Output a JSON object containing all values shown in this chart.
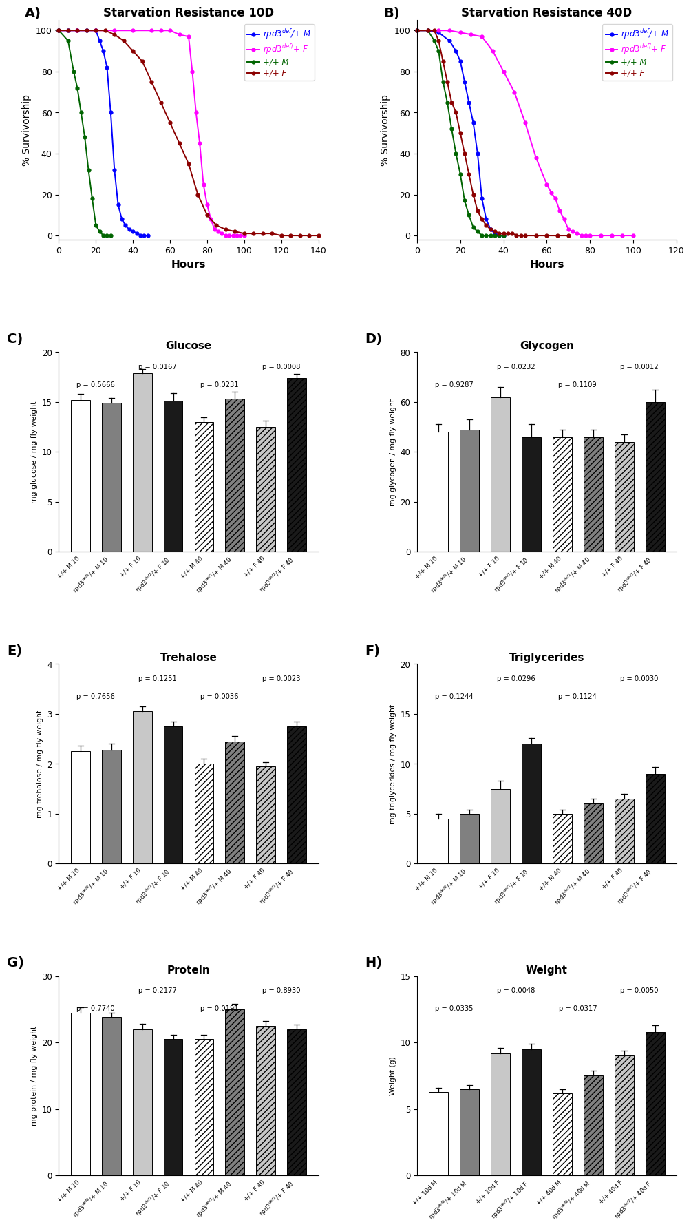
{
  "panel_A": {
    "title": "Starvation Resistance 10D",
    "xlabel": "Hours",
    "ylabel": "% Survivorship",
    "xlim": [
      0,
      140
    ],
    "ylim": [
      -2,
      105
    ],
    "xticks": [
      0,
      20,
      40,
      60,
      80,
      100,
      120,
      140
    ],
    "yticks": [
      0,
      20,
      40,
      60,
      80,
      100
    ],
    "series": {
      "rpd3M": {
        "x": [
          0,
          5,
          10,
          15,
          20,
          22,
          24,
          26,
          28,
          30,
          32,
          34,
          36,
          38,
          40,
          42,
          44,
          46,
          48
        ],
        "y": [
          100,
          100,
          100,
          100,
          100,
          95,
          90,
          82,
          60,
          32,
          15,
          8,
          5,
          3,
          2,
          1,
          0,
          0,
          0
        ],
        "color": "#0000FF",
        "label": "rpd3$^{def}$/+ M"
      },
      "rpd3F": {
        "x": [
          0,
          10,
          20,
          30,
          40,
          50,
          55,
          60,
          65,
          70,
          72,
          74,
          76,
          78,
          80,
          82,
          84,
          86,
          88,
          90,
          92,
          94,
          96,
          98,
          100
        ],
        "y": [
          100,
          100,
          100,
          100,
          100,
          100,
          100,
          100,
          98,
          97,
          80,
          60,
          45,
          25,
          15,
          8,
          3,
          2,
          1,
          0,
          0,
          0,
          0,
          0,
          0
        ],
        "color": "#FF00FF",
        "label": "rpd3$^{def/}$+ F"
      },
      "ctrlM": {
        "x": [
          0,
          5,
          8,
          10,
          12,
          14,
          16,
          18,
          20,
          22,
          24,
          26,
          28
        ],
        "y": [
          100,
          95,
          80,
          72,
          60,
          48,
          32,
          18,
          5,
          2,
          0,
          0,
          0
        ],
        "color": "#006400",
        "label": "+/+ M"
      },
      "ctrlF": {
        "x": [
          0,
          5,
          10,
          15,
          20,
          25,
          30,
          35,
          40,
          45,
          50,
          55,
          60,
          65,
          70,
          75,
          80,
          85,
          90,
          95,
          100,
          105,
          110,
          115,
          120,
          125,
          130,
          135,
          140
        ],
        "y": [
          100,
          100,
          100,
          100,
          100,
          100,
          98,
          95,
          90,
          85,
          75,
          65,
          55,
          45,
          35,
          20,
          10,
          5,
          3,
          2,
          1,
          1,
          1,
          1,
          0,
          0,
          0,
          0,
          0
        ],
        "color": "#8B0000",
        "label": "+/+ F"
      }
    }
  },
  "panel_B": {
    "title": "Starvation Resistance 40D",
    "xlabel": "Hours",
    "ylabel": "% Survivorship",
    "xlim": [
      0,
      120
    ],
    "ylim": [
      -2,
      105
    ],
    "xticks": [
      0,
      20,
      40,
      60,
      80,
      100,
      120
    ],
    "yticks": [
      0,
      20,
      40,
      60,
      80,
      100
    ],
    "series": {
      "rpd3M": {
        "x": [
          0,
          5,
          10,
          15,
          18,
          20,
          22,
          24,
          26,
          28,
          30,
          32,
          34,
          36,
          38,
          40
        ],
        "y": [
          100,
          100,
          99,
          95,
          90,
          85,
          75,
          65,
          55,
          40,
          18,
          8,
          3,
          1,
          0,
          0
        ],
        "color": "#0000FF",
        "label": "rpd3$^{def}$/+ M"
      },
      "rpd3F": {
        "x": [
          0,
          5,
          10,
          15,
          20,
          25,
          30,
          35,
          40,
          45,
          50,
          55,
          60,
          62,
          64,
          66,
          68,
          70,
          72,
          74,
          76,
          78,
          80,
          85,
          90,
          95,
          100
        ],
        "y": [
          100,
          100,
          100,
          100,
          99,
          98,
          97,
          90,
          80,
          70,
          55,
          38,
          25,
          21,
          18,
          12,
          8,
          3,
          2,
          1,
          0,
          0,
          0,
          0,
          0,
          0,
          0
        ],
        "color": "#FF00FF",
        "label": "rpd3$^{def/}$+ F"
      },
      "ctrlM": {
        "x": [
          0,
          5,
          8,
          10,
          12,
          14,
          16,
          18,
          20,
          22,
          24,
          26,
          28,
          30,
          32,
          34,
          36,
          38,
          40
        ],
        "y": [
          100,
          100,
          95,
          90,
          75,
          65,
          52,
          40,
          30,
          17,
          10,
          4,
          2,
          0,
          0,
          0,
          0,
          0,
          0
        ],
        "color": "#006400",
        "label": "+/+ M"
      },
      "ctrlF": {
        "x": [
          0,
          5,
          8,
          10,
          12,
          14,
          16,
          18,
          20,
          22,
          24,
          26,
          28,
          30,
          32,
          34,
          36,
          38,
          40,
          42,
          44,
          46,
          48,
          50,
          55,
          60,
          65,
          70
        ],
        "y": [
          100,
          100,
          100,
          95,
          85,
          75,
          65,
          60,
          50,
          40,
          30,
          20,
          12,
          8,
          5,
          3,
          2,
          1,
          1,
          1,
          1,
          0,
          0,
          0,
          0,
          0,
          0,
          0
        ],
        "color": "#8B0000",
        "label": "+/+ F"
      }
    }
  },
  "panel_C": {
    "title": "Glucose",
    "ylabel": "mg glucose / mg fly weight",
    "ylim": [
      0,
      20
    ],
    "yticks": [
      0,
      5,
      10,
      15,
      20
    ],
    "groups": [
      {
        "value": 15.2,
        "sd": 0.6,
        "hatch": "",
        "facecolor": "#FFFFFF"
      },
      {
        "value": 14.9,
        "sd": 0.5,
        "hatch": "",
        "facecolor": "#808080"
      },
      {
        "value": 17.9,
        "sd": 0.4,
        "hatch": "",
        "facecolor": "#C8C8C8"
      },
      {
        "value": 15.1,
        "sd": 0.8,
        "hatch": "",
        "facecolor": "#1A1A1A"
      },
      {
        "value": 13.0,
        "sd": 0.5,
        "hatch": "////",
        "facecolor": "#FFFFFF"
      },
      {
        "value": 15.3,
        "sd": 0.7,
        "hatch": "////",
        "facecolor": "#808080"
      },
      {
        "value": 12.5,
        "sd": 0.6,
        "hatch": "////",
        "facecolor": "#C8C8C8"
      },
      {
        "value": 17.4,
        "sd": 0.4,
        "hatch": "////",
        "facecolor": "#1A1A1A"
      }
    ],
    "pval_M10": "p = 0.5666",
    "pval_F10": "p = 0.0167",
    "pval_M40": "p = 0.0231",
    "pval_F40": "p = 0.0008"
  },
  "panel_D": {
    "title": "Glycogen",
    "ylabel": "mg glycogen / mg fly weight",
    "ylim": [
      0,
      80
    ],
    "yticks": [
      0,
      20,
      40,
      60,
      80
    ],
    "groups": [
      {
        "value": 48,
        "sd": 3,
        "hatch": "",
        "facecolor": "#FFFFFF"
      },
      {
        "value": 49,
        "sd": 4,
        "hatch": "",
        "facecolor": "#808080"
      },
      {
        "value": 62,
        "sd": 4,
        "hatch": "",
        "facecolor": "#C8C8C8"
      },
      {
        "value": 46,
        "sd": 5,
        "hatch": "",
        "facecolor": "#1A1A1A"
      },
      {
        "value": 46,
        "sd": 3,
        "hatch": "////",
        "facecolor": "#FFFFFF"
      },
      {
        "value": 46,
        "sd": 3,
        "hatch": "////",
        "facecolor": "#808080"
      },
      {
        "value": 44,
        "sd": 3,
        "hatch": "////",
        "facecolor": "#C8C8C8"
      },
      {
        "value": 60,
        "sd": 5,
        "hatch": "////",
        "facecolor": "#1A1A1A"
      }
    ],
    "pval_M10": "p = 0.9287",
    "pval_F10": "p = 0.0232",
    "pval_M40": "p = 0.1109",
    "pval_F40": "p = 0.0012"
  },
  "panel_E": {
    "title": "Trehalose",
    "ylabel": "mg trehalose / mg fly weight",
    "ylim": [
      0,
      4
    ],
    "yticks": [
      0,
      1,
      2,
      3,
      4
    ],
    "groups": [
      {
        "value": 2.25,
        "sd": 0.12,
        "hatch": "",
        "facecolor": "#FFFFFF"
      },
      {
        "value": 2.28,
        "sd": 0.12,
        "hatch": "",
        "facecolor": "#808080"
      },
      {
        "value": 3.05,
        "sd": 0.1,
        "hatch": "",
        "facecolor": "#C8C8C8"
      },
      {
        "value": 2.75,
        "sd": 0.1,
        "hatch": "",
        "facecolor": "#1A1A1A"
      },
      {
        "value": 2.0,
        "sd": 0.1,
        "hatch": "////",
        "facecolor": "#FFFFFF"
      },
      {
        "value": 2.45,
        "sd": 0.1,
        "hatch": "////",
        "facecolor": "#808080"
      },
      {
        "value": 1.95,
        "sd": 0.08,
        "hatch": "////",
        "facecolor": "#C8C8C8"
      },
      {
        "value": 2.75,
        "sd": 0.1,
        "hatch": "////",
        "facecolor": "#1A1A1A"
      }
    ],
    "pval_M10": "p = 0.7656",
    "pval_F10": "p = 0.1251",
    "pval_M40": "p = 0.0036",
    "pval_F40": "p = 0.0023"
  },
  "panel_F": {
    "title": "Triglycerides",
    "ylabel": "mg triglycerides / mg fly weight",
    "ylim": [
      0,
      20
    ],
    "yticks": [
      0,
      5,
      10,
      15,
      20
    ],
    "groups": [
      {
        "value": 4.5,
        "sd": 0.5,
        "hatch": "",
        "facecolor": "#FFFFFF"
      },
      {
        "value": 5.0,
        "sd": 0.4,
        "hatch": "",
        "facecolor": "#808080"
      },
      {
        "value": 7.5,
        "sd": 0.8,
        "hatch": "",
        "facecolor": "#C8C8C8"
      },
      {
        "value": 12.0,
        "sd": 0.6,
        "hatch": "",
        "facecolor": "#1A1A1A"
      },
      {
        "value": 5.0,
        "sd": 0.4,
        "hatch": "////",
        "facecolor": "#FFFFFF"
      },
      {
        "value": 6.0,
        "sd": 0.5,
        "hatch": "////",
        "facecolor": "#808080"
      },
      {
        "value": 6.5,
        "sd": 0.5,
        "hatch": "////",
        "facecolor": "#C8C8C8"
      },
      {
        "value": 9.0,
        "sd": 0.7,
        "hatch": "////",
        "facecolor": "#1A1A1A"
      }
    ],
    "pval_M10": "p = 0.1244",
    "pval_F10": "p = 0.0296",
    "pval_M40": "p = 0.1124",
    "pval_F40": "p = 0.0030"
  },
  "panel_G": {
    "title": "Protein",
    "ylabel": "mg protein / mg fly weight",
    "ylim": [
      0,
      30
    ],
    "yticks": [
      0,
      10,
      20,
      30
    ],
    "groups": [
      {
        "value": 24.5,
        "sd": 0.8,
        "hatch": "",
        "facecolor": "#FFFFFF"
      },
      {
        "value": 23.8,
        "sd": 0.7,
        "hatch": "",
        "facecolor": "#808080"
      },
      {
        "value": 22.0,
        "sd": 0.8,
        "hatch": "",
        "facecolor": "#C8C8C8"
      },
      {
        "value": 20.5,
        "sd": 0.7,
        "hatch": "",
        "facecolor": "#1A1A1A"
      },
      {
        "value": 20.5,
        "sd": 0.7,
        "hatch": "////",
        "facecolor": "#FFFFFF"
      },
      {
        "value": 25.0,
        "sd": 0.8,
        "hatch": "////",
        "facecolor": "#808080"
      },
      {
        "value": 22.5,
        "sd": 0.7,
        "hatch": "////",
        "facecolor": "#C8C8C8"
      },
      {
        "value": 22.0,
        "sd": 0.7,
        "hatch": "////",
        "facecolor": "#1A1A1A"
      }
    ],
    "pval_M10": "p = 0.7740",
    "pval_F10": "p = 0.2177",
    "pval_M40": "p = 0.0191",
    "pval_F40": "p = 0.8930"
  },
  "panel_H": {
    "title": "Weight",
    "ylabel": "Weight (g)",
    "ylim": [
      0,
      15
    ],
    "yticks": [
      0,
      5,
      10,
      15
    ],
    "groups": [
      {
        "value": 6.3,
        "sd": 0.3,
        "hatch": "",
        "facecolor": "#FFFFFF"
      },
      {
        "value": 6.5,
        "sd": 0.3,
        "hatch": "",
        "facecolor": "#808080"
      },
      {
        "value": 9.2,
        "sd": 0.4,
        "hatch": "",
        "facecolor": "#C8C8C8"
      },
      {
        "value": 9.5,
        "sd": 0.4,
        "hatch": "",
        "facecolor": "#1A1A1A"
      },
      {
        "value": 6.2,
        "sd": 0.3,
        "hatch": "////",
        "facecolor": "#FFFFFF"
      },
      {
        "value": 7.5,
        "sd": 0.4,
        "hatch": "////",
        "facecolor": "#808080"
      },
      {
        "value": 9.0,
        "sd": 0.4,
        "hatch": "////",
        "facecolor": "#C8C8C8"
      },
      {
        "value": 10.8,
        "sd": 0.5,
        "hatch": "////",
        "facecolor": "#1A1A1A"
      }
    ],
    "pval_M10": "p = 0.0335",
    "pval_F10": "p = 0.0048",
    "pval_M40": "p = 0.0317",
    "pval_F40": "p = 0.0050"
  },
  "xtick_labels_CDEFG": [
    "+/+ M 10",
    "rpd3$^{def2}$/+ M 10",
    "+/+ F 10",
    "rpd3$^{def2}$/+ F 10",
    "+/+ M 40",
    "rpd3$^{def2}$/+ M 40",
    "+/+ F 40",
    "rpd3$^{def2}$/+ F 40"
  ],
  "xtick_labels_H": [
    "+/+ 10d M",
    "rpd3$^{def2}$/+ 10d M",
    "+/+ 10d F",
    "rpd3$^{def2}$/+ 10d F",
    "+/+ 40d M",
    "rpd3$^{def2}$/+ 40d M",
    "+/+ 40d F",
    "rpd3$^{def2}$/+ 40d F"
  ]
}
